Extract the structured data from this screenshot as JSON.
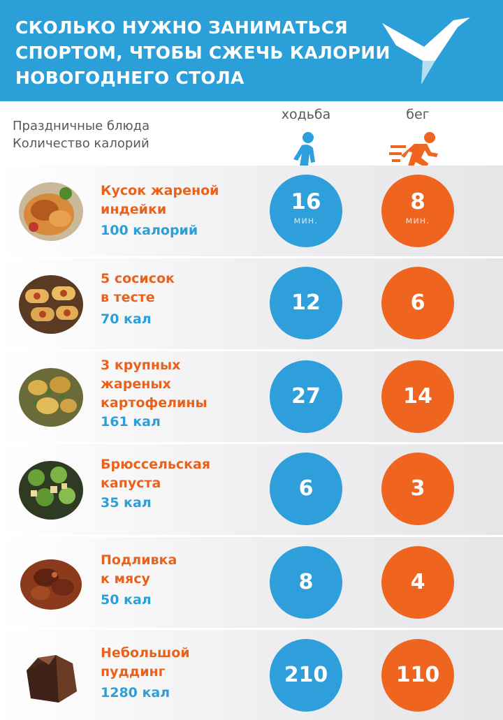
{
  "header": {
    "title_lines": [
      "СКОЛЬКО НУЖНО ЗАНИМАТЬСЯ",
      "СПОРТОМ, ЧТОБЫ СЖЕЧЬ КАЛОРИИ",
      "НОВОГОДНЕГО СТОЛА"
    ],
    "logo_icon": "swallow-bird-logo",
    "background": "#2a9fd8"
  },
  "columns": {
    "dishes_label": "Праздничные блюда",
    "calories_label": "Количество калорий",
    "walk_label": "ходьба",
    "run_label": "бег",
    "walk_icon": "walking-person-icon",
    "run_icon": "running-person-icon"
  },
  "colors": {
    "walk": "#2e9fdb",
    "run": "#ef6520",
    "dish_name": "#e8621e",
    "calories": "#2a9fd8"
  },
  "rows": [
    {
      "name_lines": [
        "Кусок жареной",
        "индейки"
      ],
      "calories": "100 калорий",
      "walk": "16",
      "run": "8",
      "unit": "мин.",
      "image": "roast-turkey-icon"
    },
    {
      "name_lines": [
        "5 сосисок",
        "в тесте"
      ],
      "calories": "70 кал",
      "walk": "12",
      "run": "6",
      "image": "sausage-rolls-icon"
    },
    {
      "name_lines": [
        "3 крупных",
        "жареных",
        "картофелины"
      ],
      "calories": "161 кал",
      "walk": "27",
      "run": "14",
      "image": "roast-potatoes-icon"
    },
    {
      "name_lines": [
        "Брюссельская",
        "капуста"
      ],
      "calories": "35 кал",
      "walk": "6",
      "run": "3",
      "image": "brussels-sprouts-icon"
    },
    {
      "name_lines": [
        "Подливка",
        "к мясу"
      ],
      "calories": "50 кал",
      "walk": "8",
      "run": "4",
      "image": "meat-gravy-icon"
    },
    {
      "name_lines": [
        "Небольшой",
        "пуддинг"
      ],
      "calories": "1280 кал",
      "walk": "210",
      "run": "110",
      "image": "pudding-icon"
    }
  ]
}
